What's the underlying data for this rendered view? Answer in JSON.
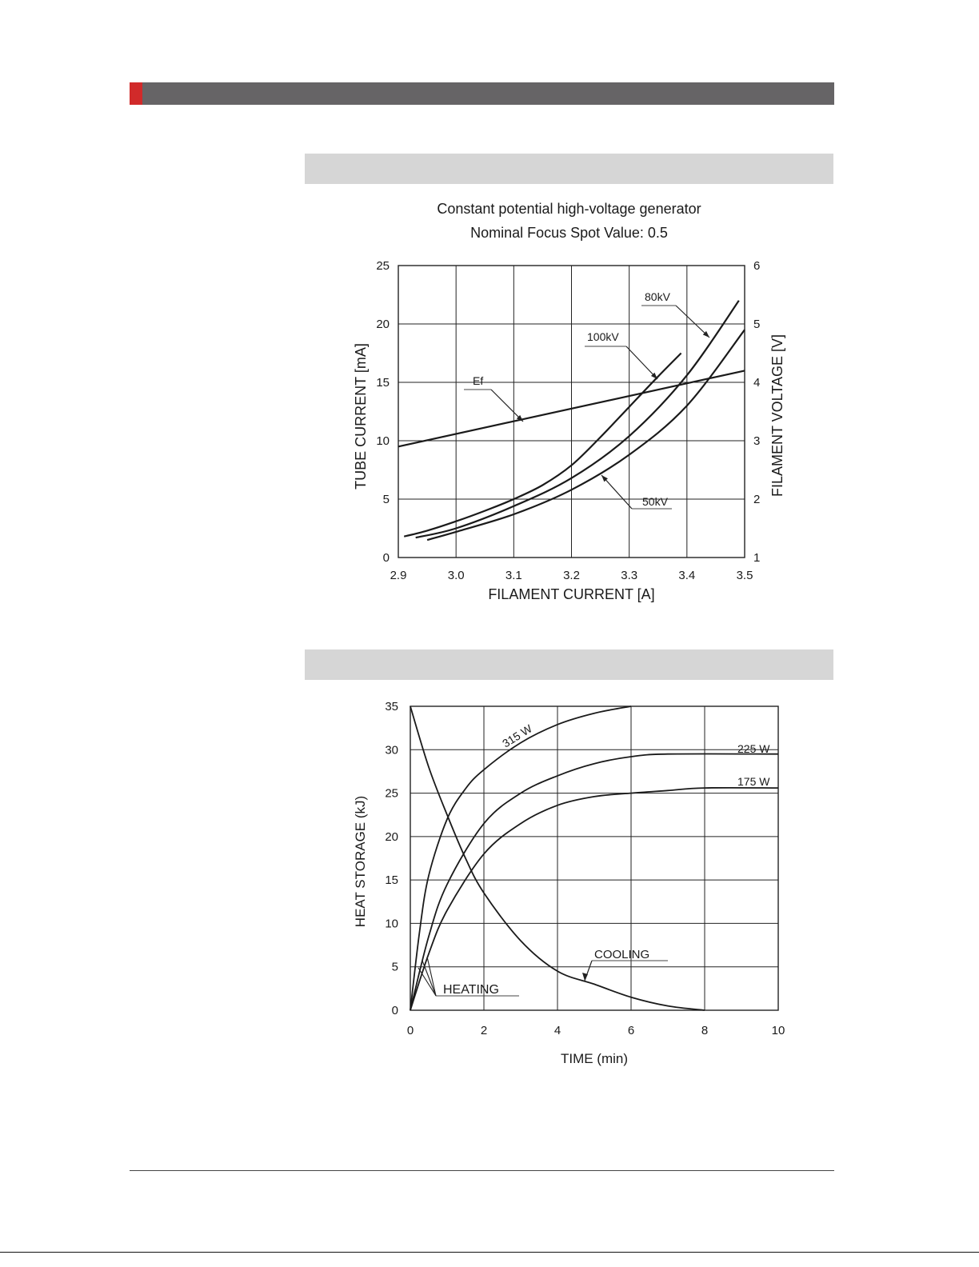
{
  "page": {
    "header_bar_color": "#666466",
    "header_accent_color": "#d12a2a",
    "section_bar_color": "#d6d6d6"
  },
  "chart_data": [
    {
      "type": "line",
      "title": "Constant potential high-voltage generator",
      "subtitle": "Nominal Focus Spot Value: 0.5",
      "xlabel": "FILAMENT CURRENT [A]",
      "ylabel": "TUBE CURRENT [mA]",
      "y2label": "FILAMENT VOLTAGE [V]",
      "xlim": [
        2.9,
        3.5
      ],
      "ylim": [
        0,
        25
      ],
      "y2lim": [
        1,
        6
      ],
      "xticks": [
        "2.9",
        "3.0",
        "3.1",
        "3.2",
        "3.3",
        "3.4",
        "3.5"
      ],
      "yticks": [
        "0",
        "5",
        "10",
        "15",
        "20",
        "25"
      ],
      "y2ticks": [
        "1",
        "2",
        "3",
        "4",
        "5",
        "6"
      ],
      "grid": true,
      "series": [
        {
          "name": "100kV",
          "axis": "left",
          "x": [
            2.91,
            2.95,
            3.0,
            3.05,
            3.1,
            3.15,
            3.2,
            3.25,
            3.3,
            3.35,
            3.39
          ],
          "y": [
            1.8,
            2.3,
            3.1,
            4.0,
            5.0,
            6.2,
            7.9,
            10.3,
            12.9,
            15.5,
            17.5
          ]
        },
        {
          "name": "80kV",
          "axis": "left",
          "x": [
            2.93,
            3.0,
            3.1,
            3.2,
            3.3,
            3.4,
            3.49
          ],
          "y": [
            1.7,
            2.5,
            4.4,
            6.8,
            10.4,
            15.6,
            22.0
          ]
        },
        {
          "name": "50kV",
          "axis": "left",
          "x": [
            2.95,
            3.0,
            3.1,
            3.2,
            3.3,
            3.4,
            3.5
          ],
          "y": [
            1.5,
            2.2,
            3.7,
            5.8,
            8.8,
            13.0,
            19.5
          ]
        },
        {
          "name": "Ef",
          "axis": "right",
          "x": [
            2.9,
            3.5
          ],
          "y": [
            2.9,
            4.2
          ]
        }
      ],
      "annotations": [
        "100kV",
        "80kV",
        "50kV",
        "Ef"
      ]
    },
    {
      "type": "line",
      "xlabel": "TIME (min)",
      "ylabel": "HEAT STORAGE (kJ)",
      "xlim": [
        0,
        10
      ],
      "ylim": [
        0,
        35
      ],
      "xticks": [
        "0",
        "2",
        "4",
        "6",
        "8",
        "10"
      ],
      "yticks": [
        "0",
        "5",
        "10",
        "15",
        "20",
        "25",
        "30",
        "35"
      ],
      "grid": true,
      "series": [
        {
          "name": "315 W",
          "x": [
            0,
            0.25,
            0.5,
            1.0,
            1.5,
            2.0,
            3.0,
            4.0,
            5.0,
            6.0
          ],
          "y": [
            0,
            9,
            15.5,
            22,
            25.5,
            27.7,
            30.8,
            32.9,
            34.2,
            35
          ]
        },
        {
          "name": "225 W",
          "x": [
            0,
            0.5,
            1.0,
            2.0,
            3.0,
            4.0,
            5.0,
            6.0,
            7.0,
            10.0
          ],
          "y": [
            0,
            8.5,
            14.5,
            21.5,
            25,
            27,
            28.4,
            29.2,
            29.5,
            29.5
          ]
        },
        {
          "name": "175 W",
          "x": [
            0,
            0.5,
            1.0,
            2.0,
            3.0,
            4.0,
            5.0,
            6.0,
            7.0,
            8.0,
            10.0
          ],
          "y": [
            0,
            6.5,
            11.5,
            18,
            21.5,
            23.6,
            24.6,
            25,
            25.3,
            25.6,
            25.6
          ]
        },
        {
          "name": "COOLING",
          "x": [
            0,
            0.5,
            1.0,
            1.5,
            2.0,
            3.0,
            4.0,
            5.0,
            6.0,
            7.0,
            8.0
          ],
          "y": [
            35,
            28,
            22.5,
            17.5,
            13.5,
            8,
            4.5,
            3,
            1.5,
            0.5,
            0
          ]
        }
      ],
      "annotations": [
        "315 W",
        "225 W",
        "175 W",
        "COOLING",
        "HEATING"
      ]
    }
  ]
}
